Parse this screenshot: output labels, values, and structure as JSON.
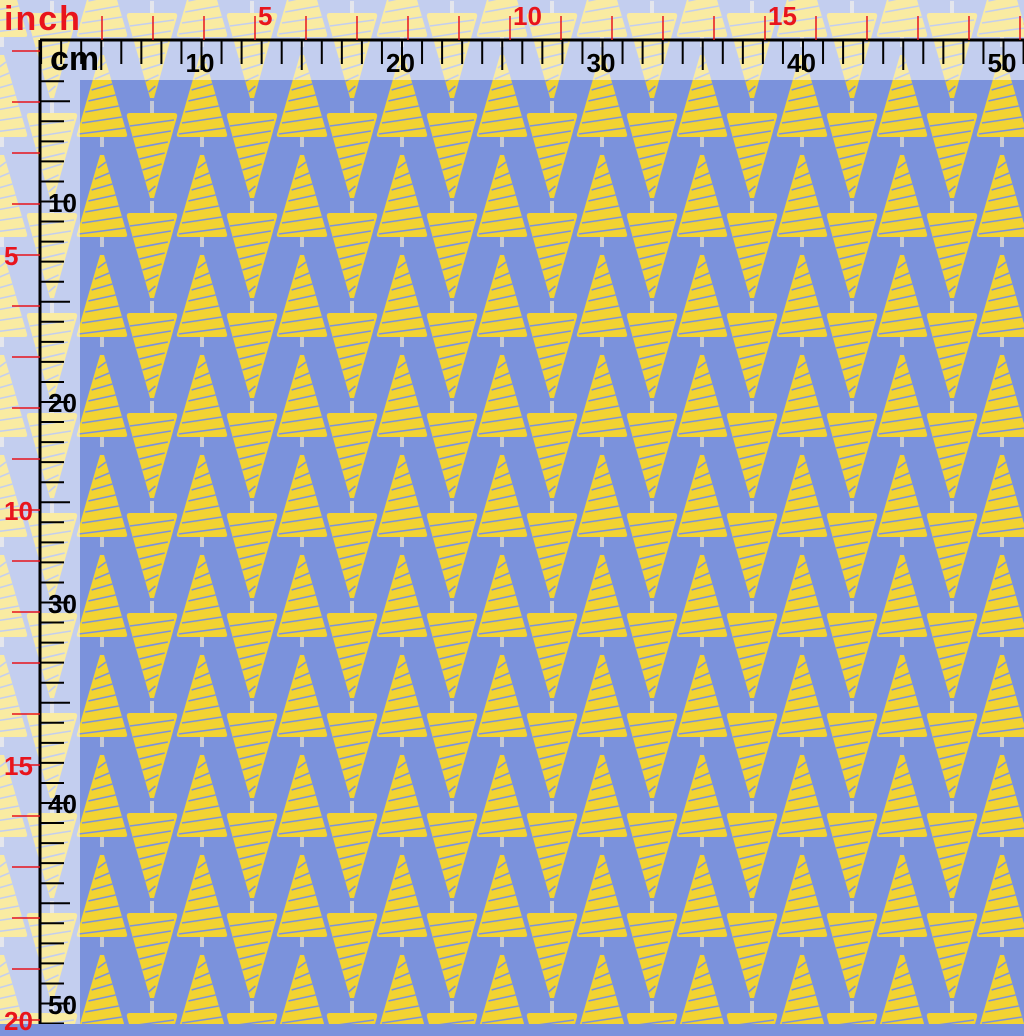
{
  "rulers": {
    "inch_unit": "inch",
    "cm_unit": "cm",
    "inch_labels": [
      "5",
      "10",
      "15",
      "20"
    ],
    "cm_labels": [
      "10",
      "20",
      "30",
      "40",
      "50"
    ],
    "inch_color": "#e8141c",
    "cm_color": "#000000"
  },
  "fabric": {
    "background_color": "#7b92dc",
    "motif_color": "#f2d332",
    "motif": "zigzag-tree",
    "trunk_color": "#c4c8d8"
  }
}
